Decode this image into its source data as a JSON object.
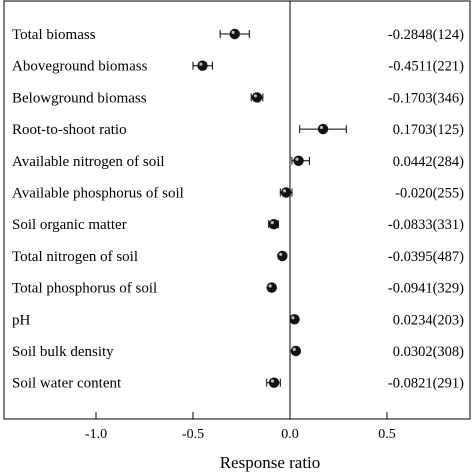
{
  "chart_data": {
    "type": "scatter",
    "xlabel": "Response ratio",
    "xlim": [
      -1.47,
      0.93
    ],
    "xticks": [
      -1.0,
      -0.5,
      0.0,
      0.5
    ],
    "xtick_labels": [
      "-1.0",
      "-0.5",
      "0.0",
      "0.5"
    ],
    "reference_line_x": 0,
    "grid": false,
    "items": [
      {
        "label": "Total biomass",
        "mean": -0.2848,
        "ci": [
          -0.36,
          -0.21
        ],
        "value_text": "-0.2848(124)"
      },
      {
        "label": "Aboveground  biomass",
        "mean": -0.4511,
        "ci": [
          -0.5,
          -0.4
        ],
        "value_text": "-0.4511(221)"
      },
      {
        "label": "Belowground biomass",
        "mean": -0.1703,
        "ci": [
          -0.2,
          -0.14
        ],
        "value_text": "-0.1703(346)"
      },
      {
        "label": "Root-to-shoot  ratio",
        "mean": 0.1703,
        "ci": [
          0.05,
          0.29
        ],
        "value_text": "0.1703(125)"
      },
      {
        "label": "Available nitrogen of soil",
        "mean": 0.0442,
        "ci": [
          0.01,
          0.1
        ],
        "value_text": "0.0442(284)"
      },
      {
        "label": "Available phosphorus of soil",
        "mean": -0.02,
        "ci": [
          -0.05,
          0.01
        ],
        "value_text": "-0.020(255)"
      },
      {
        "label": "Soil organic matter",
        "mean": -0.0833,
        "ci": [
          -0.11,
          -0.06
        ],
        "value_text": "-0.0833(331)"
      },
      {
        "label": "Total nitrogen of soil",
        "mean": -0.0395,
        "ci": [
          -0.05,
          -0.03
        ],
        "value_text": "-0.0395(487)"
      },
      {
        "label": "Total phosphorus of soil",
        "mean": -0.0941,
        "ci": [
          -0.11,
          -0.08
        ],
        "value_text": "-0.0941(329)"
      },
      {
        "label": "pH",
        "mean": 0.0234,
        "ci": [
          0.02,
          0.03
        ],
        "value_text": "0.0234(203)"
      },
      {
        "label": "Soil bulk density",
        "mean": 0.0302,
        "ci": [
          0.025,
          0.035
        ],
        "value_text": "0.0302(308)"
      },
      {
        "label": "Soil water content",
        "mean": -0.0821,
        "ci": [
          -0.12,
          -0.05
        ],
        "value_text": "-0.0821(291)"
      }
    ]
  }
}
